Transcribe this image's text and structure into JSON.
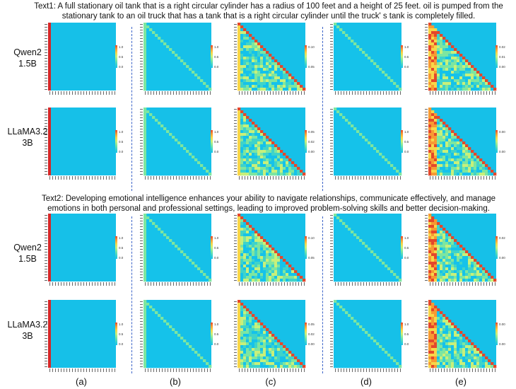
{
  "text1": {
    "line1": "Text1:  A full stationary oil tank that is a right circular cylinder has a radius of 100 feet and a height of 25 feet. oil is pumped from the",
    "line2": "stationary tank to an oil truck that has a tank that is a right circular cylinder until the truck' s tank is completely filled."
  },
  "text2": {
    "line1": "Text2:  Developing emotional intelligence enhances your ability to navigate relationships, communicate effectively, and manage",
    "line2": "emotions in both personal and professional settings, leading to improved problem-solving skills and better decision-making."
  },
  "models": {
    "qwen": {
      "line1": "Qwen2",
      "line2": "1.5B"
    },
    "llama": {
      "line1": "LLaMA3.2",
      "line2": "3B"
    }
  },
  "columns": [
    "(a)",
    "(b)",
    "(c)",
    "(d)",
    "(e)"
  ],
  "colors": {
    "background_cell": "#16c0e8",
    "accent_red": "#d62728",
    "dashed_line": "#3b63c8"
  },
  "colorbars": {
    "t1_qwen": [
      [
        "1.0",
        "0.5",
        "0.0"
      ],
      [
        "1.0",
        "0.5",
        "0.0"
      ],
      [
        "0.10",
        "0.05"
      ],
      [
        "1.0",
        "0.5",
        "0.0"
      ],
      [
        "0.02",
        "0.01",
        "0.00"
      ]
    ],
    "t1_llama": [
      [
        "1.0",
        "0.5",
        "0.0"
      ],
      [
        "1.0",
        "0.5",
        "0.0"
      ],
      [
        "0.050",
        "0.025",
        "0.000"
      ],
      [
        "1.0",
        "0.5",
        "0.0"
      ],
      [
        "0.005",
        "0.000"
      ]
    ],
    "t2_qwen": [
      [
        "1.0",
        "0.5",
        "0.0"
      ],
      [
        "1.0",
        "0.5",
        "0.0"
      ],
      [
        "0.10",
        "0.05"
      ],
      [
        "1.0",
        "0.5",
        "0.0"
      ],
      [
        "0.02",
        "0.00"
      ]
    ],
    "t2_llama": [
      [
        "1.0",
        "0.5",
        "0.0"
      ],
      [
        "1.0",
        "0.5",
        "0.0"
      ],
      [
        "0.050",
        "0.025",
        "0.000"
      ],
      [
        "1.0",
        "0.5",
        "0.0"
      ],
      [
        "0.005",
        "0.000"
      ]
    ]
  }
}
